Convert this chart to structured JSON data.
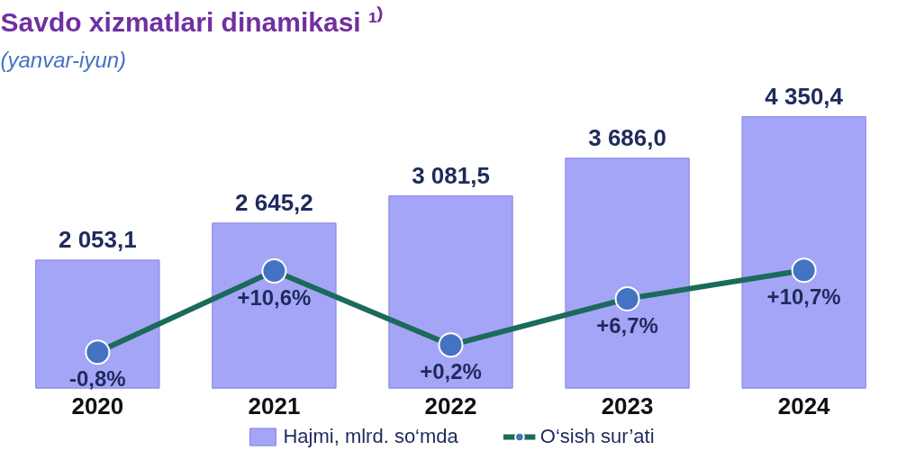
{
  "chart_data": {
    "type": "bar",
    "title": "Savdo xizmatlari dinamikasi ¹⁾",
    "subtitle": "(yanvar-iyun)",
    "categories": [
      "2020",
      "2021",
      "2022",
      "2023",
      "2024"
    ],
    "tick_labels": "x",
    "legend": "bottom",
    "series": [
      {
        "name": "Hajmi, mlrd. so‘mda",
        "color": "#a5a5f7",
        "values": [
          2053.1,
          2645.2,
          3081.5,
          3686.0,
          4350.4
        ],
        "value_labels": [
          "2 053,1",
          "2 645,2",
          "3 081,5",
          "3 686,0",
          "4 350,4"
        ]
      },
      {
        "name": "O‘sish sur’ati",
        "type": "line",
        "axis": "y2",
        "color": "#1a6b5a",
        "marker": "circle",
        "values": [
          -0.8,
          10.6,
          0.2,
          6.7,
          10.7
        ],
        "value_labels": [
          "-0,8%",
          "+10,6%",
          "+0,2%",
          "+6,7%",
          "+10,7%"
        ]
      }
    ]
  }
}
